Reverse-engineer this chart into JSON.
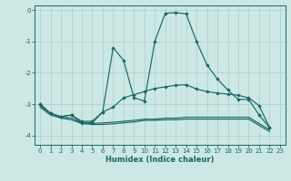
{
  "xlabel": "Humidex (Indice chaleur)",
  "bg_color": "#cce8e4",
  "grid_color": "#aacccc",
  "line_color": "#1a6666",
  "xlim": [
    -0.5,
    23.5
  ],
  "ylim": [
    -4.3,
    0.15
  ],
  "yticks": [
    0,
    -1,
    -2,
    -3,
    -4
  ],
  "xticks": [
    0,
    1,
    2,
    3,
    4,
    5,
    6,
    7,
    8,
    9,
    10,
    11,
    12,
    13,
    14,
    15,
    16,
    17,
    18,
    19,
    20,
    21,
    22,
    23
  ],
  "series1": [
    [
      0,
      -3.0
    ],
    [
      1,
      -3.3
    ],
    [
      2,
      -3.4
    ],
    [
      3,
      -3.35
    ],
    [
      4,
      -3.6
    ],
    [
      5,
      -3.6
    ],
    [
      6,
      -3.25
    ],
    [
      7,
      -1.2
    ],
    [
      8,
      -1.6
    ],
    [
      9,
      -2.8
    ],
    [
      10,
      -2.9
    ],
    [
      11,
      -1.0
    ],
    [
      12,
      -0.1
    ],
    [
      13,
      -0.08
    ],
    [
      14,
      -0.12
    ],
    [
      15,
      -1.0
    ],
    [
      16,
      -1.75
    ],
    [
      17,
      -2.2
    ],
    [
      18,
      -2.55
    ],
    [
      19,
      -2.85
    ],
    [
      20,
      -2.85
    ],
    [
      21,
      -3.35
    ],
    [
      22,
      -3.75
    ]
  ],
  "series2": [
    [
      0,
      -3.0
    ],
    [
      1,
      -3.3
    ],
    [
      2,
      -3.4
    ],
    [
      3,
      -3.35
    ],
    [
      4,
      -3.55
    ],
    [
      5,
      -3.55
    ],
    [
      6,
      -3.25
    ],
    [
      7,
      -3.1
    ],
    [
      8,
      -2.8
    ],
    [
      9,
      -2.7
    ],
    [
      10,
      -2.6
    ],
    [
      11,
      -2.5
    ],
    [
      12,
      -2.45
    ],
    [
      13,
      -2.4
    ],
    [
      14,
      -2.38
    ],
    [
      15,
      -2.52
    ],
    [
      16,
      -2.6
    ],
    [
      17,
      -2.65
    ],
    [
      18,
      -2.68
    ],
    [
      19,
      -2.72
    ],
    [
      20,
      -2.8
    ],
    [
      21,
      -3.05
    ],
    [
      22,
      -3.75
    ]
  ],
  "series3": [
    [
      0,
      -3.05
    ],
    [
      1,
      -3.3
    ],
    [
      2,
      -3.42
    ],
    [
      3,
      -3.45
    ],
    [
      4,
      -3.6
    ],
    [
      5,
      -3.62
    ],
    [
      6,
      -3.6
    ],
    [
      7,
      -3.58
    ],
    [
      8,
      -3.55
    ],
    [
      9,
      -3.52
    ],
    [
      10,
      -3.48
    ],
    [
      11,
      -3.48
    ],
    [
      12,
      -3.45
    ],
    [
      13,
      -3.45
    ],
    [
      14,
      -3.42
    ],
    [
      15,
      -3.42
    ],
    [
      16,
      -3.42
    ],
    [
      17,
      -3.42
    ],
    [
      18,
      -3.42
    ],
    [
      19,
      -3.42
    ],
    [
      20,
      -3.42
    ],
    [
      22,
      -3.82
    ]
  ],
  "series4": [
    [
      0,
      -3.1
    ],
    [
      1,
      -3.35
    ],
    [
      2,
      -3.45
    ],
    [
      3,
      -3.5
    ],
    [
      4,
      -3.62
    ],
    [
      5,
      -3.65
    ],
    [
      6,
      -3.65
    ],
    [
      7,
      -3.63
    ],
    [
      8,
      -3.6
    ],
    [
      9,
      -3.57
    ],
    [
      10,
      -3.52
    ],
    [
      11,
      -3.52
    ],
    [
      12,
      -3.5
    ],
    [
      13,
      -3.5
    ],
    [
      14,
      -3.48
    ],
    [
      15,
      -3.48
    ],
    [
      16,
      -3.48
    ],
    [
      17,
      -3.48
    ],
    [
      18,
      -3.48
    ],
    [
      19,
      -3.48
    ],
    [
      20,
      -3.48
    ],
    [
      22,
      -3.88
    ]
  ]
}
